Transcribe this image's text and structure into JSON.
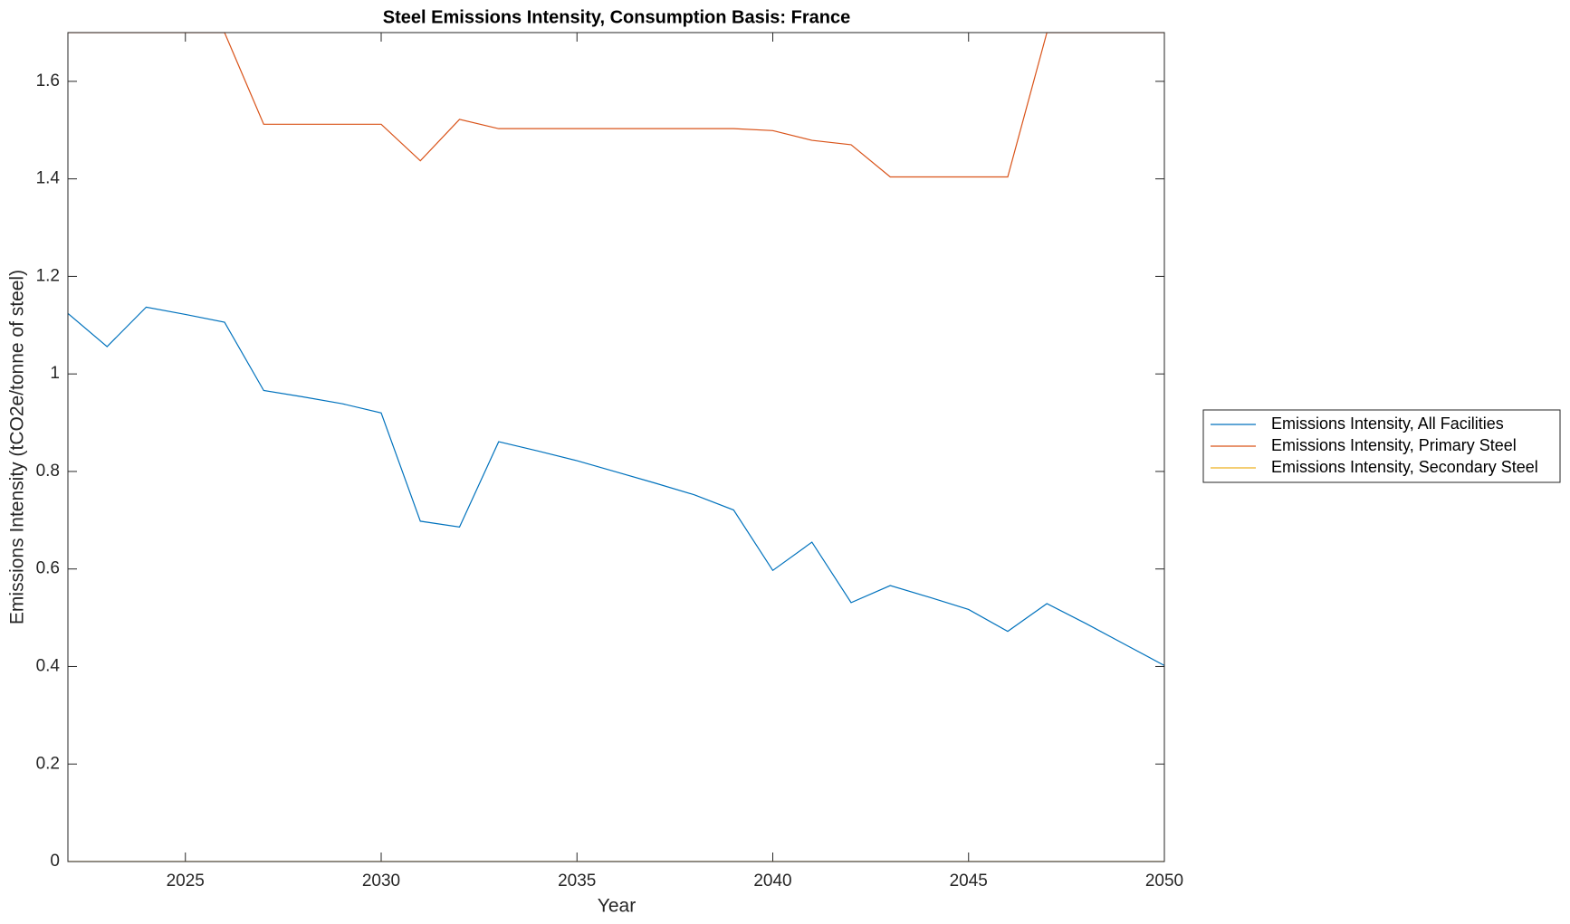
{
  "chart_data": {
    "type": "line",
    "title": "Steel Emissions Intensity, Consumption Basis: France",
    "x_label": "Year",
    "y_label": "Emissions Intensity (tCO2e/tonne of steel)",
    "x": [
      2022,
      2023,
      2024,
      2025,
      2026,
      2027,
      2028,
      2029,
      2030,
      2031,
      2032,
      2033,
      2034,
      2035,
      2036,
      2037,
      2038,
      2039,
      2040,
      2041,
      2042,
      2043,
      2044,
      2045,
      2046,
      2047,
      2048,
      2049,
      2050
    ],
    "series": [
      {
        "name": "Emissions Intensity, All Facilities",
        "color": "#0072BD",
        "values": [
          1.124,
          1.056,
          1.137,
          1.122,
          1.106,
          0.966,
          0.953,
          0.939,
          0.92,
          0.698,
          0.686,
          0.861,
          0.842,
          0.822,
          0.799,
          0.776,
          0.752,
          0.721,
          0.597,
          0.655,
          0.531,
          0.566,
          0.542,
          0.517,
          0.472,
          0.529,
          0.488,
          0.445,
          0.402
        ]
      },
      {
        "name": "Emissions Intensity, Primary Steel",
        "color": "#D95319",
        "values": [
          1.7,
          1.7,
          1.7,
          1.7,
          1.7,
          1.512,
          1.512,
          1.512,
          1.512,
          1.437,
          1.522,
          1.503,
          1.503,
          1.503,
          1.503,
          1.503,
          1.503,
          1.503,
          1.499,
          1.479,
          1.47,
          1.404,
          1.404,
          1.404,
          1.404,
          1.7,
          1.7,
          1.7,
          1.7
        ]
      },
      {
        "name": "Emissions Intensity, Secondary Steel",
        "color": "#EDB120",
        "values": [
          0,
          0,
          0,
          0,
          0,
          0,
          0,
          0,
          0,
          0,
          0,
          0,
          0,
          0,
          0,
          0,
          0,
          0,
          0,
          0,
          0,
          0,
          0,
          0,
          0,
          0,
          0,
          0,
          0
        ]
      }
    ],
    "xlim": [
      2022,
      2050
    ],
    "xticks": [
      2025,
      2030,
      2035,
      2040,
      2045,
      2050
    ],
    "ylim": [
      0,
      1.7
    ],
    "yticks": [
      0,
      0.2,
      0.4,
      0.6,
      0.8,
      1,
      1.2,
      1.4,
      1.6
    ],
    "grid": false,
    "legend": "outside-right"
  }
}
